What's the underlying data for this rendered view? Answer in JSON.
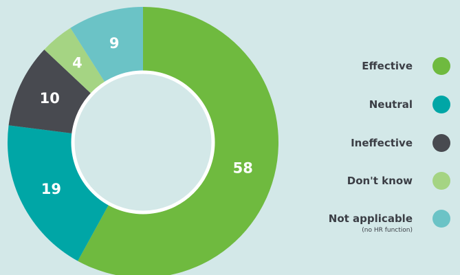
{
  "chart_data": {
    "type": "pie",
    "donut": true,
    "categories": [
      "Effective",
      "Neutral",
      "Ineffective",
      "Don't know",
      "Not applicable"
    ],
    "notes": [
      "",
      "",
      "",
      "",
      "(no HR function)"
    ],
    "values": [
      58,
      19,
      10,
      4,
      9
    ],
    "colors": [
      "#6fba3f",
      "#00a6a6",
      "#484a50",
      "#a5d483",
      "#6bc3c6"
    ],
    "legend_position": "right"
  }
}
